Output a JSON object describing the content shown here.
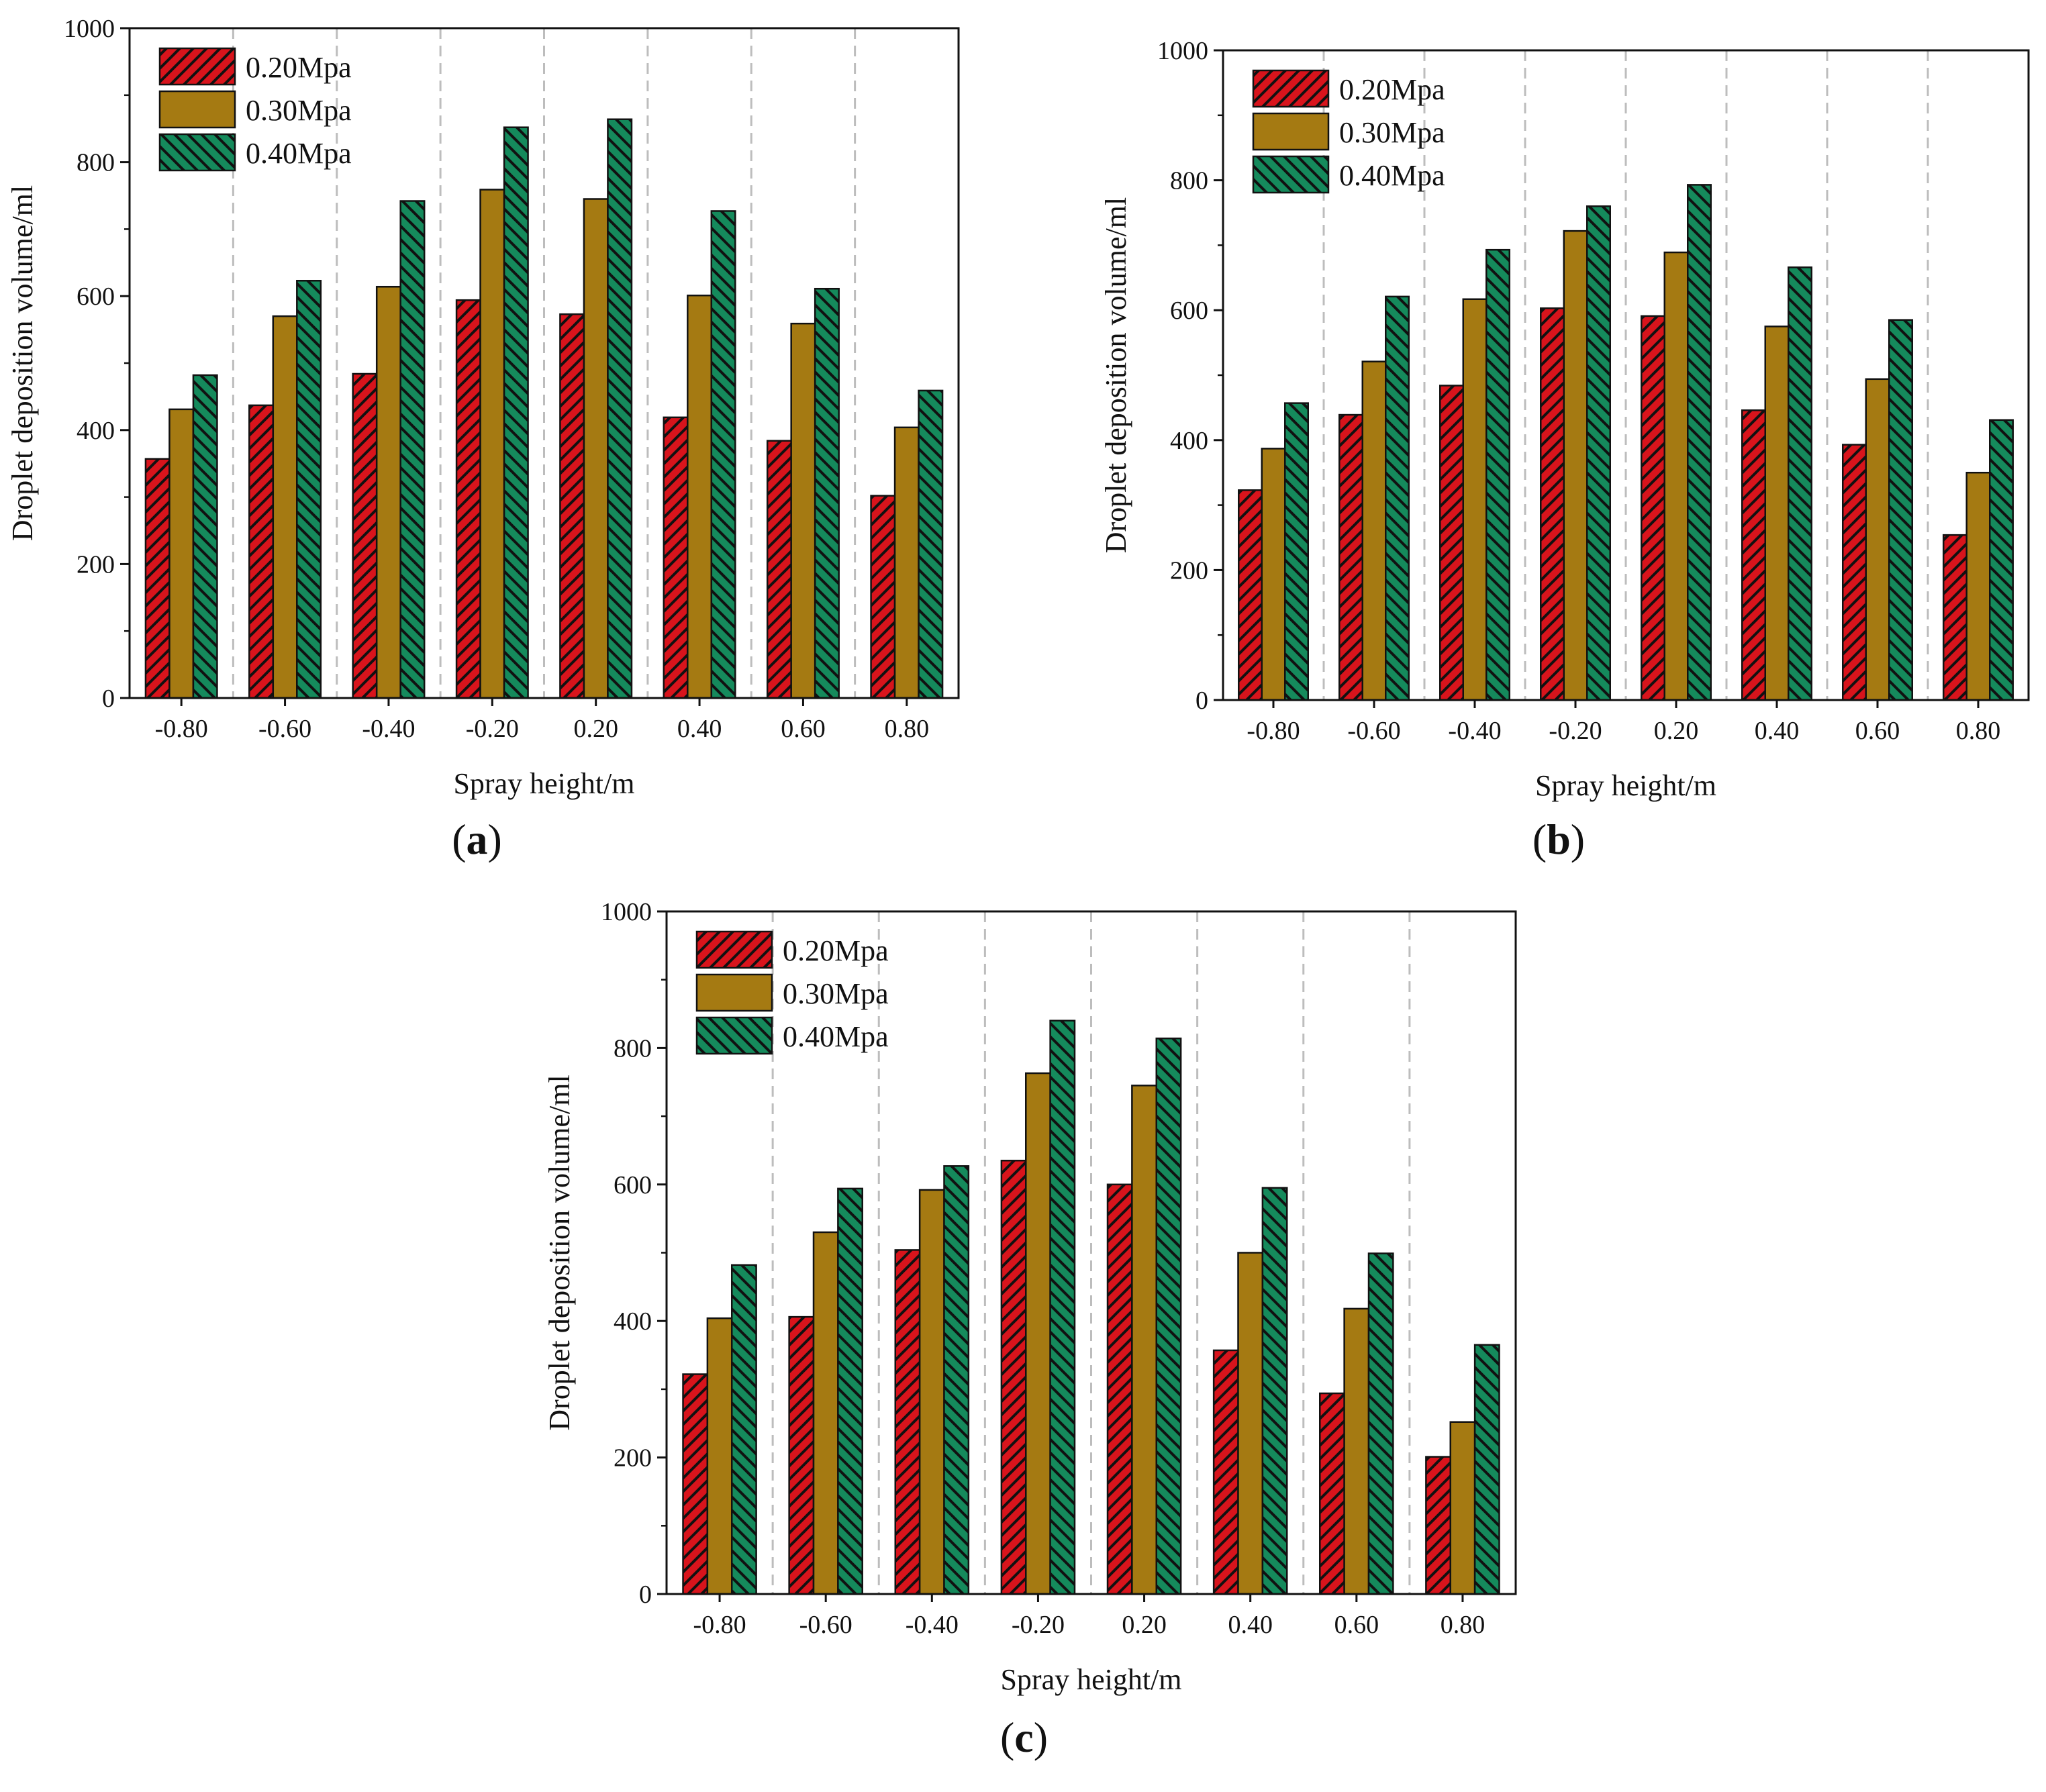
{
  "figure": {
    "colors": {
      "s020": "#d8141c",
      "s030": "#a57a12",
      "s040": "#158a5c",
      "hatch": "#111111",
      "grid": "#bdbdbd",
      "axis": "#111111"
    }
  },
  "chart_data": [
    {
      "type": "bar",
      "panel": "a",
      "caption": {
        "open": "(",
        "letter": "a",
        "close": ")"
      },
      "title": "",
      "xlabel": "Spray height/m",
      "ylabel": "Droplet deposition volume/ml",
      "ylim": [
        0,
        1000
      ],
      "yticks": [
        "0",
        "200",
        "400",
        "600",
        "800",
        "1000"
      ],
      "categories": [
        "-0.80",
        "-0.60",
        "-0.40",
        "-0.20",
        "0.20",
        "0.40",
        "0.60",
        "0.80"
      ],
      "legend_position": "top-left",
      "series": [
        {
          "name": "0.20Mpa",
          "values": [
            357,
            437,
            484,
            594,
            573,
            419,
            384,
            302
          ]
        },
        {
          "name": "0.30Mpa",
          "values": [
            431,
            570,
            614,
            759,
            745,
            601,
            559,
            404
          ]
        },
        {
          "name": "0.40Mpa",
          "values": [
            482,
            623,
            742,
            852,
            864,
            727,
            611,
            459
          ]
        }
      ]
    },
    {
      "type": "bar",
      "panel": "b",
      "caption": {
        "open": "(",
        "letter": "b",
        "close": ")"
      },
      "title": "",
      "xlabel": "Spray height/m",
      "ylabel": "Droplet deposition volume/ml",
      "ylim": [
        0,
        1000
      ],
      "yticks": [
        "0",
        "200",
        "400",
        "600",
        "800",
        "1000"
      ],
      "categories": [
        "-0.80",
        "-0.60",
        "-0.40",
        "-0.20",
        "0.20",
        "0.40",
        "0.60",
        "0.80"
      ],
      "legend_position": "top-left",
      "series": [
        {
          "name": "0.20Mpa",
          "values": [
            323,
            439,
            484,
            603,
            591,
            446,
            393,
            254
          ]
        },
        {
          "name": "0.30Mpa",
          "values": [
            387,
            521,
            617,
            722,
            689,
            575,
            494,
            350
          ]
        },
        {
          "name": "0.40Mpa",
          "values": [
            457,
            621,
            693,
            760,
            793,
            666,
            585,
            431
          ]
        }
      ]
    },
    {
      "type": "bar",
      "panel": "c",
      "caption": {
        "open": "(",
        "letter": "c",
        "close": ")"
      },
      "title": "",
      "xlabel": "Spray height/m",
      "ylabel": "Droplet deposition volume/ml",
      "ylim": [
        0,
        1000
      ],
      "yticks": [
        "0",
        "200",
        "400",
        "600",
        "800",
        "1000"
      ],
      "categories": [
        "-0.80",
        "-0.60",
        "-0.40",
        "-0.20",
        "0.20",
        "0.40",
        "0.60",
        "0.80"
      ],
      "legend_position": "top-left",
      "series": [
        {
          "name": "0.20Mpa",
          "values": [
            322,
            406,
            504,
            635,
            600,
            357,
            294,
            201
          ]
        },
        {
          "name": "0.30Mpa",
          "values": [
            404,
            530,
            592,
            763,
            745,
            500,
            418,
            252
          ]
        },
        {
          "name": "0.40Mpa",
          "values": [
            482,
            594,
            627,
            840,
            814,
            595,
            499,
            365
          ]
        }
      ]
    }
  ]
}
